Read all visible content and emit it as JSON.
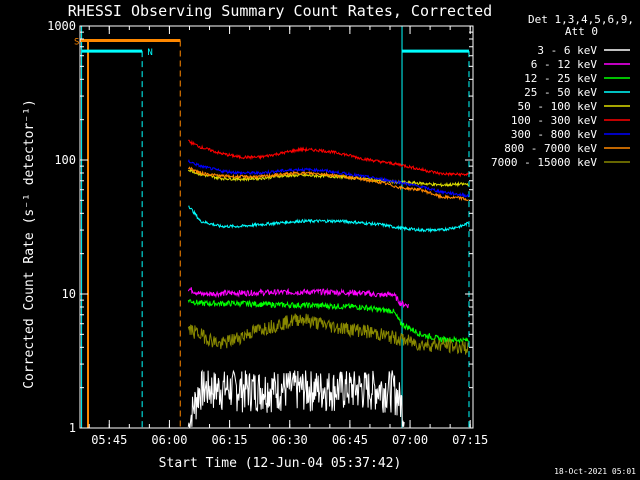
{
  "chart_data": {
    "type": "line",
    "title": "RHESSI Observing Summary Count Rates, Corrected",
    "xlabel": "Start Time (12-Jun-04 05:37:42)",
    "ylabel": "Corrected Count Rate (s⁻¹ detector⁻¹)",
    "y_scale": "log",
    "ylim": [
      1,
      1000
    ],
    "xlim_minutes_after_0537": [
      0,
      98
    ],
    "y_ticks": [
      "1",
      "10",
      "100",
      "1000"
    ],
    "x_ticks": [
      {
        "label": "05:45",
        "min": 7.3
      },
      {
        "label": "06:00",
        "min": 22.3
      },
      {
        "label": "06:15",
        "min": 37.3
      },
      {
        "label": "06:30",
        "min": 52.3
      },
      {
        "label": "06:45",
        "min": 67.3
      },
      {
        "label": "07:00",
        "min": 82.3
      },
      {
        "label": "07:15",
        "min": 97.3
      }
    ],
    "legend_header": [
      "Det 1,3,4,5,6,9,",
      "Att 0"
    ],
    "legend_position": "right",
    "series": [
      {
        "name": "3 - 6 keV",
        "color": "#ffffff",
        "points": [
          [
            27,
            1
          ],
          [
            30,
            2
          ],
          [
            40,
            2
          ],
          [
            50,
            2
          ],
          [
            60,
            2
          ],
          [
            70,
            2
          ],
          [
            75,
            2
          ],
          [
            78,
            2
          ],
          [
            80,
            1.6
          ],
          [
            81,
            1.2
          ]
        ]
      },
      {
        "name": "6 - 12 keV",
        "color": "#ff00ff",
        "points": [
          [
            27,
            11
          ],
          [
            30,
            10
          ],
          [
            40,
            10.2
          ],
          [
            50,
            10.3
          ],
          [
            60,
            10.4
          ],
          [
            70,
            10.2
          ],
          [
            75,
            9.8
          ],
          [
            78,
            10
          ],
          [
            80,
            8.5
          ],
          [
            82,
            8.2
          ]
        ]
      },
      {
        "name": "12 - 25 keV",
        "color": "#00ff00",
        "points": [
          [
            27,
            9
          ],
          [
            30,
            8.5
          ],
          [
            40,
            8.5
          ],
          [
            50,
            8.3
          ],
          [
            60,
            8.2
          ],
          [
            70,
            8
          ],
          [
            75,
            7.6
          ],
          [
            78,
            7.5
          ],
          [
            80,
            6
          ],
          [
            85,
            5
          ],
          [
            90,
            4.6
          ],
          [
            97,
            4.5
          ]
        ]
      },
      {
        "name": "25 - 50 keV",
        "color": "#00ffff",
        "points": [
          [
            27,
            46
          ],
          [
            28,
            42
          ],
          [
            30,
            35
          ],
          [
            35,
            32
          ],
          [
            40,
            32
          ],
          [
            45,
            33
          ],
          [
            50,
            34
          ],
          [
            55,
            35
          ],
          [
            60,
            35
          ],
          [
            65,
            35
          ],
          [
            70,
            34
          ],
          [
            75,
            33
          ],
          [
            80,
            31
          ],
          [
            85,
            30
          ],
          [
            90,
            30
          ],
          [
            95,
            32
          ],
          [
            97,
            34
          ]
        ]
      },
      {
        "name": "50 - 100 keV",
        "color": "#dddd00",
        "points": [
          [
            27,
            85
          ],
          [
            30,
            78
          ],
          [
            35,
            73
          ],
          [
            40,
            72
          ],
          [
            45,
            73
          ],
          [
            50,
            76
          ],
          [
            55,
            77
          ],
          [
            60,
            76
          ],
          [
            65,
            75
          ],
          [
            70,
            73
          ],
          [
            75,
            70
          ],
          [
            80,
            68
          ],
          [
            85,
            67
          ],
          [
            90,
            65
          ],
          [
            95,
            66
          ],
          [
            97,
            66
          ]
        ]
      },
      {
        "name": "100 - 300 keV",
        "color": "#ff0000",
        "points": [
          [
            27,
            138
          ],
          [
            30,
            125
          ],
          [
            35,
            112
          ],
          [
            40,
            105
          ],
          [
            45,
            105
          ],
          [
            50,
            112
          ],
          [
            55,
            120
          ],
          [
            60,
            118
          ],
          [
            65,
            112
          ],
          [
            70,
            103
          ],
          [
            75,
            97
          ],
          [
            80,
            92
          ],
          [
            85,
            85
          ],
          [
            90,
            79
          ],
          [
            95,
            78
          ],
          [
            97,
            78
          ]
        ]
      },
      {
        "name": "300 - 800 keV",
        "color": "#0000ff",
        "points": [
          [
            27,
            98
          ],
          [
            30,
            90
          ],
          [
            35,
            83
          ],
          [
            40,
            80
          ],
          [
            45,
            80
          ],
          [
            50,
            83
          ],
          [
            55,
            85
          ],
          [
            60,
            84
          ],
          [
            65,
            80
          ],
          [
            70,
            76
          ],
          [
            75,
            72
          ],
          [
            80,
            68
          ],
          [
            85,
            63
          ],
          [
            90,
            58
          ],
          [
            95,
            55
          ],
          [
            97,
            54
          ]
        ]
      },
      {
        "name": "800 - 7000 keV",
        "color": "#ff8800",
        "points": [
          [
            0,
            780
          ],
          [
            25,
            780
          ],
          [
            27,
            88
          ],
          [
            30,
            80
          ],
          [
            35,
            76
          ],
          [
            40,
            75
          ],
          [
            45,
            75
          ],
          [
            50,
            78
          ],
          [
            55,
            80
          ],
          [
            60,
            79
          ],
          [
            65,
            76
          ],
          [
            70,
            72
          ],
          [
            75,
            68
          ],
          [
            80,
            62
          ],
          [
            85,
            60
          ],
          [
            90,
            53
          ],
          [
            95,
            52
          ],
          [
            97,
            50
          ]
        ]
      },
      {
        "name": "7000 - 15000 keV",
        "color": "#888800",
        "points": [
          [
            27,
            5.5
          ],
          [
            30,
            5
          ],
          [
            35,
            4.2
          ],
          [
            40,
            4.8
          ],
          [
            45,
            5.5
          ],
          [
            50,
            6
          ],
          [
            55,
            6.6
          ],
          [
            60,
            6
          ],
          [
            65,
            5.6
          ],
          [
            70,
            5.4
          ],
          [
            75,
            5
          ],
          [
            80,
            4.6
          ],
          [
            85,
            4.2
          ],
          [
            90,
            4.2
          ],
          [
            95,
            4
          ],
          [
            97,
            4
          ]
        ]
      }
    ],
    "annotations": [
      {
        "text": "S",
        "color": "#ff8800"
      },
      {
        "text": "N",
        "color": "#00ffff"
      }
    ],
    "date_stamp": "18-Oct-2021 05:01"
  }
}
